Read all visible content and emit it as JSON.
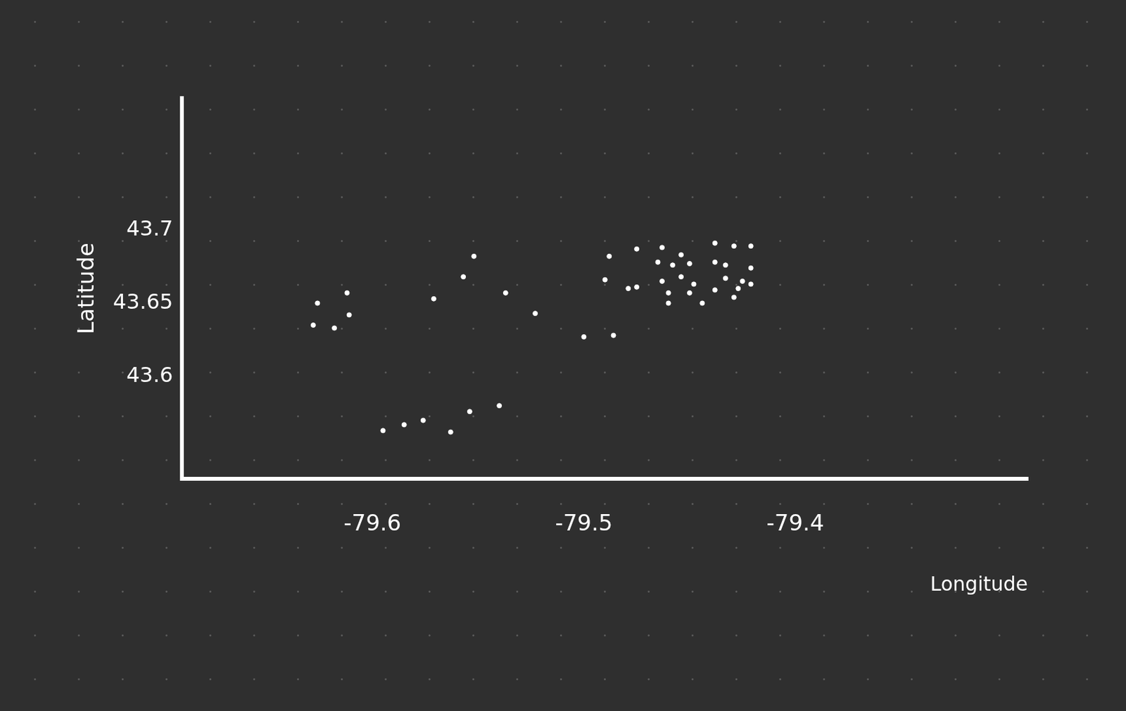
{
  "chart_data": {
    "type": "scatter",
    "x_label": "Longitude",
    "y_label": "Latitude",
    "x": [
      -79.626,
      -79.612,
      -79.628,
      -79.618,
      -79.611,
      -79.571,
      -79.552,
      -79.557,
      -79.537,
      -79.523,
      -79.5,
      -79.486,
      -79.595,
      -79.585,
      -79.576,
      -79.563,
      -79.554,
      -79.54,
      -79.488,
      -79.475,
      -79.463,
      -79.454,
      -79.438,
      -79.429,
      -79.421,
      -79.438,
      -79.433,
      -79.49,
      -79.475,
      -79.463,
      -79.454,
      -79.448,
      -79.433,
      -79.425,
      -79.421,
      -79.421,
      -79.46,
      -79.45,
      -79.438,
      -79.429,
      -79.46,
      -79.444,
      -79.465,
      -79.458,
      -79.45,
      -79.427,
      -79.479
    ],
    "values": [
      43.65,
      43.657,
      43.635,
      43.633,
      43.642,
      43.653,
      43.682,
      43.668,
      43.657,
      43.643,
      43.627,
      43.628,
      43.563,
      43.567,
      43.57,
      43.562,
      43.576,
      43.58,
      43.682,
      43.687,
      43.688,
      43.683,
      43.691,
      43.689,
      43.689,
      43.678,
      43.676,
      43.666,
      43.661,
      43.665,
      43.668,
      43.663,
      43.667,
      43.665,
      43.674,
      43.663,
      43.657,
      43.657,
      43.659,
      43.654,
      43.65,
      43.65,
      43.678,
      43.676,
      43.677,
      43.66,
      43.66
    ],
    "color": "#ffffff",
    "marker": "circle",
    "xlim": [
      -79.69,
      -79.29
    ],
    "xticks": [
      -79.6,
      -79.5,
      -79.4
    ],
    "ylim": [
      43.53,
      43.79
    ],
    "yticks": [
      43.6,
      43.65,
      43.7
    ],
    "grid": false
  }
}
